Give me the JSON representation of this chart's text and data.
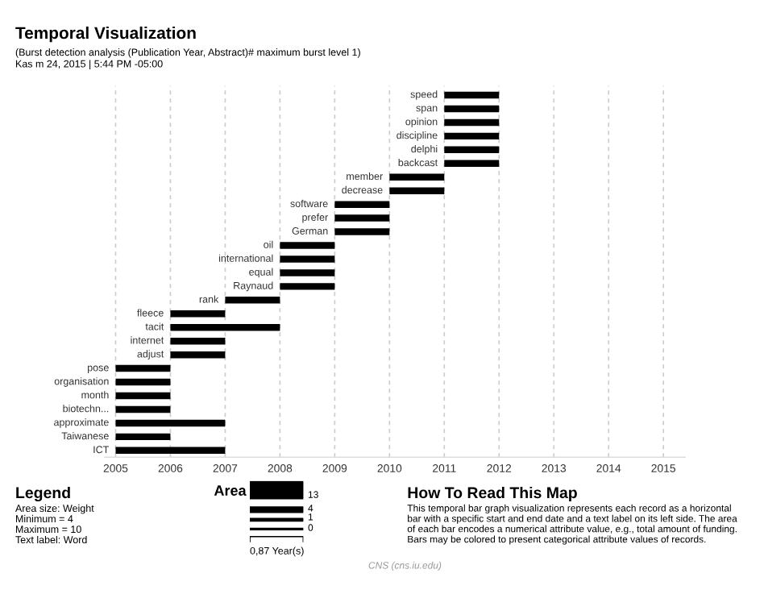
{
  "chart_data": {
    "type": "bar",
    "orientation": "horizontal",
    "title": "Temporal Visualization",
    "subtitle": "(Burst detection analysis (Publication Year, Abstract)# maximum burst level 1)\nKas m 24, 2015 | 5:44 PM -05:00",
    "categories": [
      "speed",
      "span",
      "opinion",
      "discipline",
      "delphi",
      "backcast",
      "member",
      "decrease",
      "software",
      "prefer",
      "German",
      "oil",
      "international",
      "equal",
      "Raynaud",
      "rank",
      "fleece",
      "tacit",
      "internet",
      "adjust",
      "pose",
      "organisation",
      "month",
      "biotechn...",
      "approximate",
      "Taiwanese",
      "ICT"
    ],
    "base": [
      2011,
      2011,
      2011,
      2011,
      2011,
      2011,
      2010,
      2010,
      2009,
      2009,
      2009,
      2008,
      2008,
      2008,
      2008,
      2007,
      2006,
      2006,
      2006,
      2006,
      2005,
      2005,
      2005,
      2005,
      2005,
      2005,
      2005
    ],
    "values": [
      1,
      1,
      1,
      1,
      1,
      1,
      1,
      1,
      1,
      1,
      1,
      1,
      1,
      1,
      1,
      1,
      1,
      2,
      1,
      1,
      1,
      1,
      1,
      1,
      2,
      1,
      2
    ],
    "color": "#000000",
    "xlim": [
      2004.8,
      2015.4
    ],
    "xticks": [
      2005,
      2006,
      2007,
      2008,
      2009,
      2010,
      2011,
      2012,
      2013,
      2014,
      2015
    ],
    "grid": "x",
    "tick_labels": "x",
    "annotations": [
      "Legend",
      "Area size: Weight\nMinimum = 4\nMaximum = 10\nText label: Word",
      "Area",
      "13",
      "4",
      "1",
      "0",
      "0,87 Year(s)",
      "How To Read This Map",
      "This temporal bar graph visualization represents each record as a horizontal\nbar with a specific start and end date and a text label on its left side. The area\nof each bar encodes a numerical attribute value, e.g., total amount of funding.\nBars may be colored to present categorical attribute values of records.",
      "CNS (cns.iu.edu)"
    ]
  }
}
